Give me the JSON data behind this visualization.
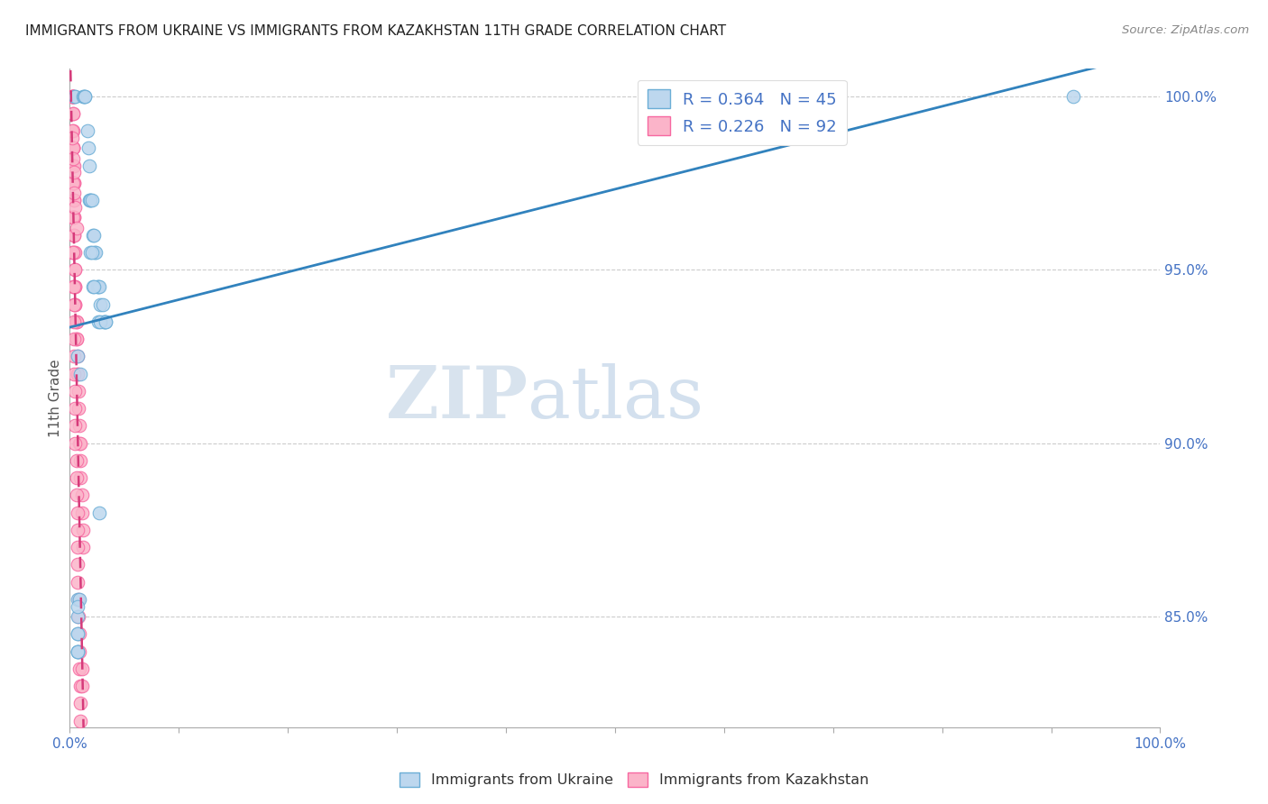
{
  "title": "IMMIGRANTS FROM UKRAINE VS IMMIGRANTS FROM KAZAKHSTAN 11TH GRADE CORRELATION CHART",
  "source": "Source: ZipAtlas.com",
  "ylabel": "11th Grade",
  "ukraine_R": 0.364,
  "ukraine_N": 45,
  "kazakhstan_R": 0.226,
  "kazakhstan_N": 92,
  "ukraine_color": "#6baed6",
  "ukraine_fill": "#bdd7ee",
  "kazakhstan_color": "#f768a1",
  "kazakhstan_fill": "#fbb4c9",
  "trend_ukraine_color": "#3182bd",
  "trend_kazakhstan_color": "#d63a7a",
  "watermark_zip": "ZIP",
  "watermark_atlas": "atlas",
  "xlim": [
    0.0,
    1.0
  ],
  "ylim": [
    0.818,
    1.008
  ],
  "yticks": [
    0.85,
    0.9,
    0.95,
    1.0
  ],
  "ytick_labels": [
    "85.0%",
    "90.0%",
    "95.0%",
    "100.0%"
  ],
  "ukraine_x": [
    0.005,
    0.005,
    0.012,
    0.013,
    0.014,
    0.014,
    0.016,
    0.017,
    0.018,
    0.018,
    0.019,
    0.019,
    0.02,
    0.021,
    0.022,
    0.023,
    0.024,
    0.025,
    0.026,
    0.027,
    0.028,
    0.03,
    0.031,
    0.032,
    0.033,
    0.019,
    0.02,
    0.021,
    0.022,
    0.026,
    0.028,
    0.033,
    0.007,
    0.01,
    0.027,
    0.007,
    0.009,
    0.007,
    0.007,
    0.007,
    0.92,
    0.007,
    0.007,
    0.007,
    0.007
  ],
  "ukraine_y": [
    1.0,
    1.0,
    1.0,
    1.0,
    1.0,
    1.0,
    0.99,
    0.985,
    0.98,
    0.97,
    0.97,
    0.97,
    0.97,
    0.96,
    0.96,
    0.955,
    0.955,
    0.945,
    0.945,
    0.945,
    0.94,
    0.94,
    0.935,
    0.935,
    0.935,
    0.955,
    0.955,
    0.945,
    0.945,
    0.935,
    0.935,
    0.935,
    0.925,
    0.92,
    0.88,
    0.855,
    0.855,
    0.85,
    0.845,
    0.84,
    1.0,
    0.853,
    0.845,
    0.84,
    0.84
  ],
  "kazakhstan_x": [
    0.002,
    0.002,
    0.002,
    0.003,
    0.003,
    0.003,
    0.003,
    0.003,
    0.003,
    0.003,
    0.003,
    0.003,
    0.003,
    0.004,
    0.004,
    0.004,
    0.004,
    0.004,
    0.004,
    0.004,
    0.004,
    0.004,
    0.004,
    0.005,
    0.005,
    0.005,
    0.005,
    0.005,
    0.005,
    0.005,
    0.006,
    0.006,
    0.006,
    0.006,
    0.007,
    0.007,
    0.007,
    0.008,
    0.008,
    0.009,
    0.009,
    0.01,
    0.01,
    0.01,
    0.011,
    0.011,
    0.012,
    0.012,
    0.002,
    0.002,
    0.002,
    0.002,
    0.002,
    0.003,
    0.003,
    0.003,
    0.003,
    0.003,
    0.004,
    0.004,
    0.004,
    0.004,
    0.004,
    0.004,
    0.005,
    0.005,
    0.005,
    0.005,
    0.006,
    0.006,
    0.006,
    0.007,
    0.007,
    0.007,
    0.007,
    0.007,
    0.008,
    0.008,
    0.009,
    0.009,
    0.009,
    0.01,
    0.01,
    0.01,
    0.011,
    0.011,
    0.002,
    0.003,
    0.004,
    0.004,
    0.005,
    0.006
  ],
  "kazakhstan_y": [
    1.0,
    1.0,
    1.0,
    1.0,
    1.0,
    1.0,
    0.995,
    0.995,
    0.99,
    0.985,
    0.985,
    0.985,
    0.98,
    0.98,
    0.975,
    0.975,
    0.97,
    0.97,
    0.965,
    0.965,
    0.96,
    0.96,
    0.955,
    0.955,
    0.95,
    0.95,
    0.945,
    0.945,
    0.94,
    0.94,
    0.935,
    0.935,
    0.93,
    0.93,
    0.925,
    0.92,
    0.92,
    0.915,
    0.91,
    0.905,
    0.9,
    0.9,
    0.895,
    0.89,
    0.885,
    0.88,
    0.875,
    0.87,
    0.99,
    0.985,
    0.975,
    0.965,
    0.955,
    0.985,
    0.975,
    0.965,
    0.955,
    0.945,
    0.945,
    0.94,
    0.935,
    0.93,
    0.925,
    0.92,
    0.915,
    0.91,
    0.905,
    0.9,
    0.895,
    0.89,
    0.885,
    0.88,
    0.875,
    0.87,
    0.865,
    0.86,
    0.855,
    0.85,
    0.845,
    0.84,
    0.835,
    0.83,
    0.825,
    0.82,
    0.835,
    0.83,
    0.988,
    0.982,
    0.978,
    0.972,
    0.968,
    0.962
  ]
}
